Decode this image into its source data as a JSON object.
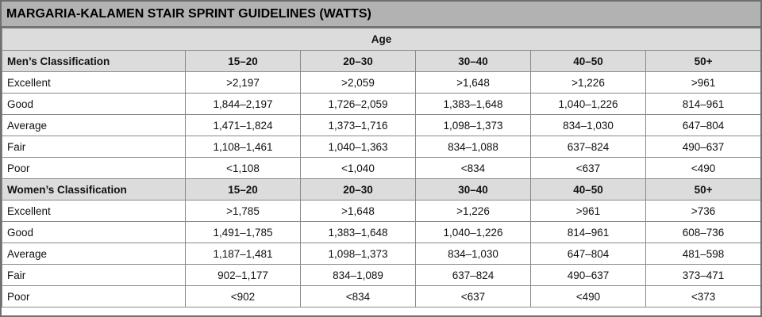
{
  "title": "MARGARIA-KALAMEN STAIR SPRINT GUIDELINES (WATTS)",
  "age_label": "Age",
  "age_groups": [
    "15–20",
    "20–30",
    "30–40",
    "40–50",
    "50+"
  ],
  "men": {
    "header": "Men’s Classification",
    "rows": [
      {
        "label": "Excellent",
        "values": [
          ">2,197",
          ">2,059",
          ">1,648",
          ">1,226",
          ">961"
        ]
      },
      {
        "label": "Good",
        "values": [
          "1,844–2,197",
          "1,726–2,059",
          "1,383–1,648",
          "1,040–1,226",
          "814–961"
        ]
      },
      {
        "label": "Average",
        "values": [
          "1,471–1,824",
          "1,373–1,716",
          "1,098–1,373",
          "834–1,030",
          "647–804"
        ]
      },
      {
        "label": "Fair",
        "values": [
          "1,108–1,461",
          "1,040–1,363",
          "834–1,088",
          "637–824",
          "490–637"
        ]
      },
      {
        "label": "Poor",
        "values": [
          "<1,108",
          "<1,040",
          "<834",
          "<637",
          "<490"
        ]
      }
    ]
  },
  "women": {
    "header": "Women’s Classification",
    "rows": [
      {
        "label": "Excellent",
        "values": [
          ">1,785",
          ">1,648",
          ">1,226",
          ">961",
          ">736"
        ]
      },
      {
        "label": "Good",
        "values": [
          "1,491–1,785",
          "1,383–1,648",
          "1,040–1,226",
          "814–961",
          "608–736"
        ]
      },
      {
        "label": "Average",
        "values": [
          "1,187–1,481",
          "1,098–1,373",
          "834–1,030",
          "647–804",
          "481–598"
        ]
      },
      {
        "label": "Fair",
        "values": [
          "902–1,177",
          "834–1,089",
          "637–824",
          "490–637",
          "373–471"
        ]
      },
      {
        "label": "Poor",
        "values": [
          "<902",
          "<834",
          "<637",
          "<490",
          "<373"
        ]
      }
    ]
  }
}
